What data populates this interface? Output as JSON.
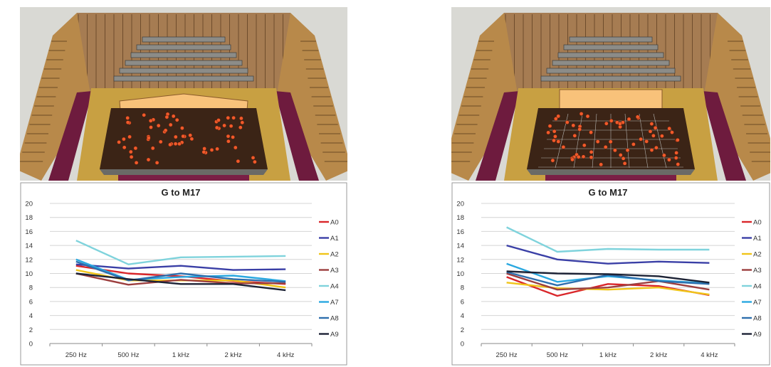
{
  "chart_data": [
    {
      "type": "line",
      "title": "G to M17",
      "categories": [
        "250 Hz",
        "500 Hz",
        "1 kHz",
        "2 kHz",
        "4 kHz"
      ],
      "ylim": [
        0,
        20
      ],
      "yticks": [
        "0",
        "2",
        "4",
        "6",
        "8",
        "10",
        "12",
        "14",
        "16",
        "18",
        "20"
      ],
      "grid": true,
      "legend": "right",
      "series": [
        {
          "name": "A0",
          "color": "#d9262a",
          "values": [
            11.1,
            10.0,
            9.6,
            8.9,
            8.5
          ]
        },
        {
          "name": "A1",
          "color": "#3a3fa6",
          "values": [
            11.3,
            10.7,
            11.1,
            10.5,
            10.6
          ]
        },
        {
          "name": "A2",
          "color": "#f0c419",
          "values": [
            10.5,
            9.0,
            9.0,
            9.0,
            8.0
          ]
        },
        {
          "name": "A3",
          "color": "#9c3e3e",
          "values": [
            10.0,
            8.4,
            9.1,
            8.6,
            8.6
          ]
        },
        {
          "name": "A4",
          "color": "#7fd3dc",
          "values": [
            14.7,
            11.3,
            12.3,
            12.4,
            12.5
          ]
        },
        {
          "name": "A7",
          "color": "#2aa8e0",
          "values": [
            12.0,
            9.1,
            9.5,
            9.7,
            8.9
          ]
        },
        {
          "name": "A8",
          "color": "#2e6fad",
          "values": [
            11.7,
            9.0,
            10.0,
            9.2,
            8.8
          ]
        },
        {
          "name": "A9",
          "color": "#1c2235",
          "values": [
            10.0,
            9.2,
            8.5,
            8.5,
            7.6
          ]
        }
      ]
    },
    {
      "type": "line",
      "title": "G to M17",
      "categories": [
        "250 Hz",
        "500 Hz",
        "1 kHz",
        "2 kHz",
        "4 kHz"
      ],
      "ylim": [
        0,
        20
      ],
      "yticks": [
        "0",
        "2",
        "4",
        "6",
        "8",
        "10",
        "12",
        "14",
        "16",
        "18",
        "20"
      ],
      "grid": true,
      "legend": "right",
      "series": [
        {
          "name": "A0",
          "color": "#d9262a",
          "values": [
            9.5,
            6.8,
            8.5,
            8.2,
            6.9
          ]
        },
        {
          "name": "A1",
          "color": "#3a3fa6",
          "values": [
            14.0,
            12.0,
            11.4,
            11.7,
            11.5
          ]
        },
        {
          "name": "A2",
          "color": "#f0c419",
          "values": [
            8.7,
            7.9,
            7.7,
            8.0,
            7.0
          ]
        },
        {
          "name": "A3",
          "color": "#9c3e3e",
          "values": [
            10.0,
            7.7,
            8.0,
            8.9,
            7.7
          ]
        },
        {
          "name": "A4",
          "color": "#7fd3dc",
          "values": [
            16.6,
            13.1,
            13.5,
            13.4,
            13.4
          ]
        },
        {
          "name": "A7",
          "color": "#2aa8e0",
          "values": [
            11.4,
            8.8,
            9.6,
            9.0,
            8.6
          ]
        },
        {
          "name": "A8",
          "color": "#2e6fad",
          "values": [
            10.2,
            8.3,
            9.8,
            8.9,
            8.5
          ]
        },
        {
          "name": "A9",
          "color": "#1c2235",
          "values": [
            10.3,
            10.0,
            9.9,
            9.6,
            8.7
          ]
        }
      ]
    }
  ],
  "renders": [
    {
      "audience": "left-hall-render"
    },
    {
      "audience": "right-hall-render"
    }
  ]
}
